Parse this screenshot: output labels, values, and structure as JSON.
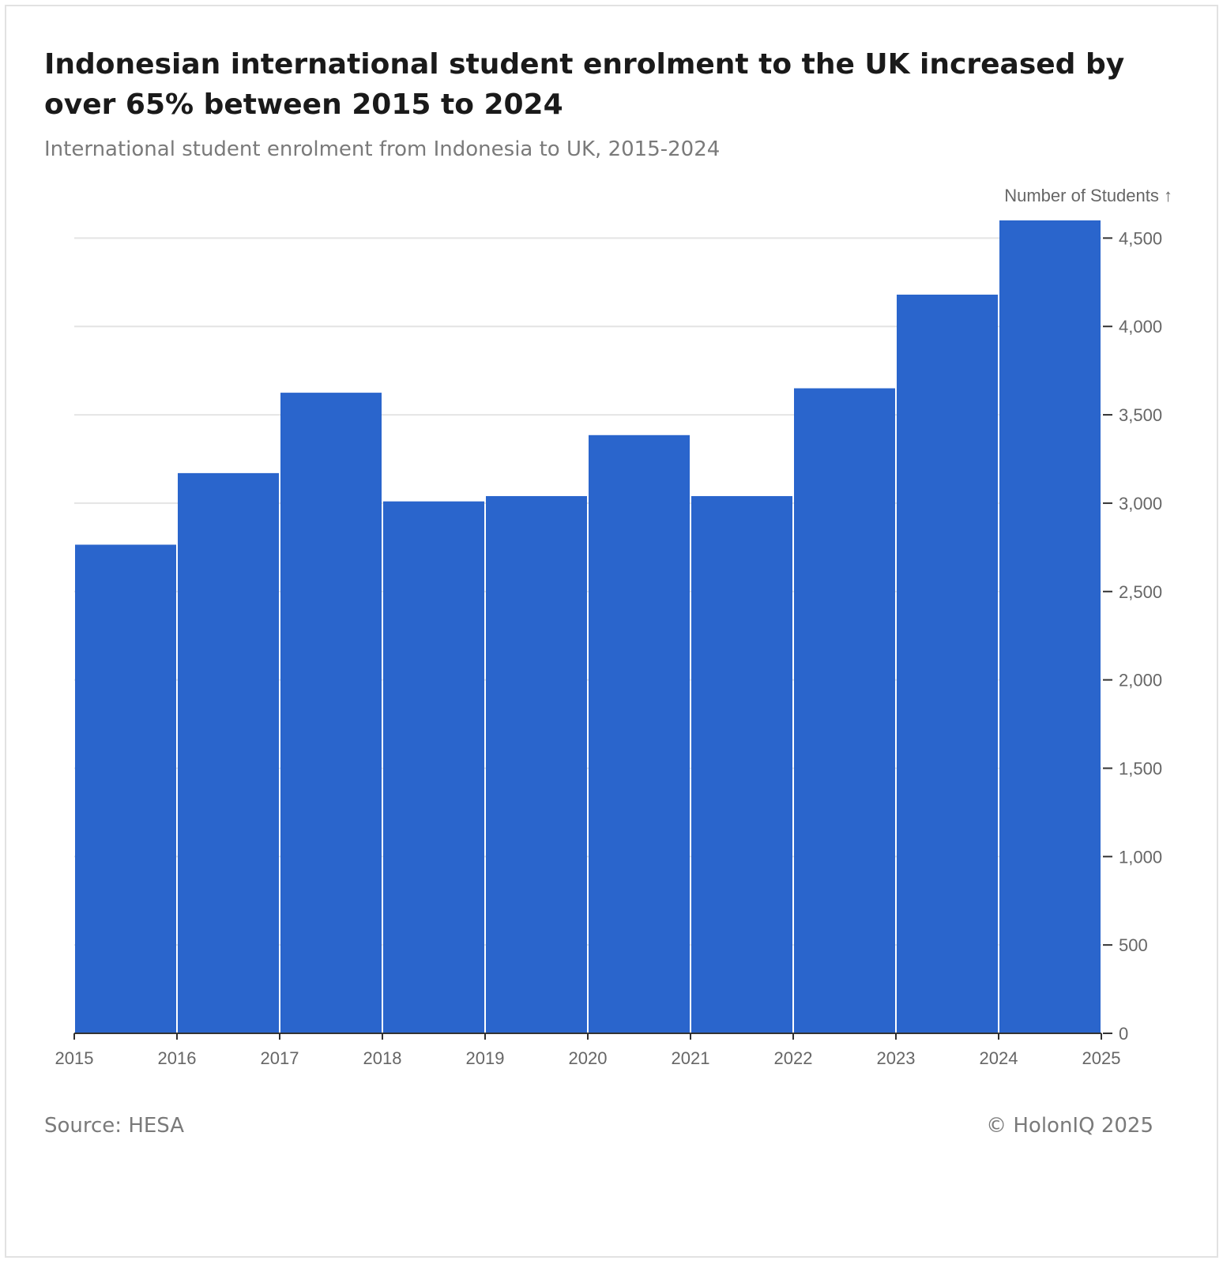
{
  "chart_data": {
    "type": "bar",
    "title": "Indonesian international student enrolment to the UK increased by over 65% between 2015 to 2024",
    "subtitle": "International student enrolment from Indonesia to UK, 2015-2024",
    "ylabel": "Number of Students ↑",
    "x_ticks": [
      "2015",
      "2016",
      "2017",
      "2018",
      "2019",
      "2020",
      "2021",
      "2022",
      "2023",
      "2024",
      "2025"
    ],
    "bins": [
      {
        "start": 2015,
        "end": 2016,
        "value": 2765
      },
      {
        "start": 2016,
        "end": 2017,
        "value": 3170
      },
      {
        "start": 2017,
        "end": 2018,
        "value": 3625
      },
      {
        "start": 2018,
        "end": 2019,
        "value": 3010
      },
      {
        "start": 2019,
        "end": 2020,
        "value": 3040
      },
      {
        "start": 2020,
        "end": 2021,
        "value": 3385
      },
      {
        "start": 2021,
        "end": 2022,
        "value": 3040
      },
      {
        "start": 2022,
        "end": 2023,
        "value": 3650
      },
      {
        "start": 2023,
        "end": 2024,
        "value": 4180
      },
      {
        "start": 2024,
        "end": 2025,
        "value": 4600
      }
    ],
    "y_ticks": [
      0,
      500,
      1000,
      1500,
      2000,
      2500,
      3000,
      3500,
      4000,
      4500
    ],
    "y_tick_labels": [
      "0",
      "500",
      "1,000",
      "1,500",
      "2,000",
      "2,500",
      "3,000",
      "3,500",
      "4,000",
      "4,500"
    ],
    "ylim": [
      0,
      4600
    ],
    "xlim": [
      2015,
      2025
    ],
    "y_axis_side": "right",
    "grid": true,
    "bar_color": "#2a65cc"
  },
  "source": "Source: HESA",
  "copyright": "© HolonIQ 2025"
}
